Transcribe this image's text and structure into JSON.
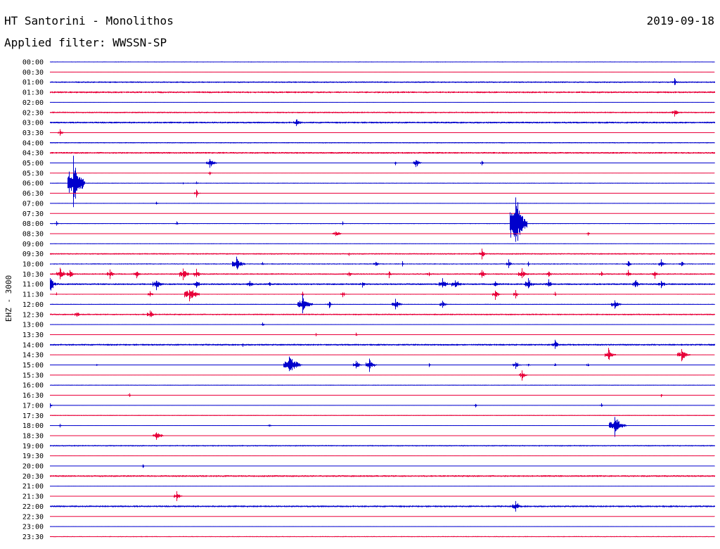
{
  "header": {
    "station": "HT Santorini - Monolithos",
    "filter": "Applied filter: WWSSN-SP",
    "date": "2019-09-18"
  },
  "channel_label": "EHZ - 3000",
  "colors": {
    "odd_trace": "#0000cc",
    "even_trace": "#e8003a"
  },
  "chart_data": {
    "type": "line",
    "title": "HT Santorini - Monolithos",
    "subtitle": "Applied filter: WWSSN-SP",
    "ylabel": "EHZ - 3000",
    "rows": [
      {
        "label": "00:00",
        "noise": 0.6,
        "events": [
          [
            35,
            0.8
          ],
          [
            40,
            0.6
          ],
          [
            92,
            0.8
          ]
        ]
      },
      {
        "label": "00:30",
        "noise": 0.3,
        "events": []
      },
      {
        "label": "01:00",
        "noise": 1.0,
        "events": [
          [
            94,
            6
          ]
        ]
      },
      {
        "label": "01:30",
        "noise": 1.2,
        "events": []
      },
      {
        "label": "02:00",
        "noise": 0.3,
        "events": []
      },
      {
        "label": "02:30",
        "noise": 1.0,
        "events": [
          [
            94,
            7
          ]
        ]
      },
      {
        "label": "03:00",
        "noise": 1.2,
        "events": [
          [
            37,
            8
          ]
        ]
      },
      {
        "label": "03:30",
        "noise": 0.3,
        "events": [
          [
            1.5,
            5
          ]
        ]
      },
      {
        "label": "04:00",
        "noise": 0.8,
        "events": []
      },
      {
        "label": "04:30",
        "noise": 1.2,
        "events": [
          [
            26,
            2
          ]
        ]
      },
      {
        "label": "05:00",
        "noise": 0.5,
        "events": [
          [
            24,
            9
          ],
          [
            52,
            4
          ],
          [
            55,
            8
          ],
          [
            65,
            4
          ]
        ]
      },
      {
        "label": "05:30",
        "noise": 0.3,
        "events": [
          [
            24,
            3
          ]
        ]
      },
      {
        "label": "06:00",
        "noise": 0.5,
        "events": [
          [
            3.5,
            42
          ],
          [
            20,
            2
          ],
          [
            22,
            3
          ]
        ]
      },
      {
        "label": "06:30",
        "noise": 0.3,
        "events": [
          [
            22,
            6
          ]
        ]
      },
      {
        "label": "07:00",
        "noise": 0.5,
        "events": [
          [
            16,
            3
          ]
        ]
      },
      {
        "label": "07:30",
        "noise": 0.3,
        "events": []
      },
      {
        "label": "08:00",
        "noise": 0.6,
        "events": [
          [
            1,
            4
          ],
          [
            19,
            3
          ],
          [
            44,
            3
          ],
          [
            70,
            53
          ]
        ]
      },
      {
        "label": "08:30",
        "noise": 0.3,
        "events": [
          [
            43,
            7
          ],
          [
            81,
            3
          ]
        ]
      },
      {
        "label": "09:00",
        "noise": 0.4,
        "events": []
      },
      {
        "label": "09:30",
        "noise": 1.0,
        "events": [
          [
            45,
            3
          ],
          [
            65,
            8
          ]
        ]
      },
      {
        "label": "10:00",
        "noise": 0.8,
        "events": [
          [
            28,
            12
          ],
          [
            32,
            3
          ],
          [
            49,
            5
          ],
          [
            53,
            4
          ],
          [
            69,
            7
          ],
          [
            72,
            4
          ],
          [
            87,
            6
          ],
          [
            92,
            8
          ],
          [
            95,
            5
          ]
        ]
      },
      {
        "label": "10:30",
        "noise": 1.0,
        "events": [
          [
            1.5,
            10
          ],
          [
            3,
            8
          ],
          [
            9,
            8
          ],
          [
            13,
            7
          ],
          [
            20,
            10
          ],
          [
            22,
            8
          ],
          [
            45,
            6
          ],
          [
            51,
            6
          ],
          [
            57,
            5
          ],
          [
            65,
            7
          ],
          [
            71,
            9
          ],
          [
            75,
            6
          ],
          [
            83,
            5
          ],
          [
            87,
            6
          ],
          [
            91,
            7
          ]
        ]
      },
      {
        "label": "11:00",
        "noise": 1.2,
        "events": [
          [
            0,
            12
          ],
          [
            16,
            10
          ],
          [
            22,
            8
          ],
          [
            30,
            7
          ],
          [
            33,
            5
          ],
          [
            47,
            5
          ],
          [
            59,
            10
          ],
          [
            61,
            10
          ],
          [
            67,
            6
          ],
          [
            72,
            10
          ],
          [
            75,
            7
          ],
          [
            88,
            8
          ],
          [
            92,
            7
          ]
        ]
      },
      {
        "label": "11:30",
        "noise": 0.6,
        "events": [
          [
            1,
            3
          ],
          [
            15,
            5
          ],
          [
            21,
            14
          ],
          [
            38,
            4
          ],
          [
            44,
            5
          ],
          [
            67,
            8
          ],
          [
            70,
            6
          ],
          [
            76,
            4
          ]
        ]
      },
      {
        "label": "12:00",
        "noise": 0.6,
        "events": [
          [
            38,
            14
          ],
          [
            42,
            6
          ],
          [
            52,
            9
          ],
          [
            59,
            7
          ],
          [
            85,
            9
          ]
        ]
      },
      {
        "label": "12:30",
        "noise": 1.0,
        "events": [
          [
            4,
            6
          ],
          [
            15,
            8
          ]
        ]
      },
      {
        "label": "13:00",
        "noise": 0.3,
        "events": [
          [
            32,
            3
          ]
        ]
      },
      {
        "label": "13:30",
        "noise": 0.3,
        "events": [
          [
            40,
            3
          ],
          [
            46,
            3
          ]
        ]
      },
      {
        "label": "14:00",
        "noise": 1.2,
        "events": [
          [
            29,
            3
          ],
          [
            76,
            8
          ]
        ]
      },
      {
        "label": "14:30",
        "noise": 0.3,
        "events": [
          [
            84,
            10
          ],
          [
            95,
            11
          ]
        ]
      },
      {
        "label": "15:00",
        "noise": 0.5,
        "events": [
          [
            7,
            2
          ],
          [
            36,
            18
          ],
          [
            37,
            8
          ],
          [
            46,
            8
          ],
          [
            48,
            10
          ],
          [
            57,
            3
          ],
          [
            70,
            7
          ],
          [
            72,
            3
          ],
          [
            76,
            3
          ],
          [
            81,
            3
          ]
        ]
      },
      {
        "label": "15:30",
        "noise": 0.3,
        "events": [
          [
            71,
            8
          ]
        ]
      },
      {
        "label": "16:00",
        "noise": 0.5,
        "events": []
      },
      {
        "label": "16:30",
        "noise": 0.3,
        "events": [
          [
            12,
            4
          ],
          [
            92,
            3
          ]
        ]
      },
      {
        "label": "17:00",
        "noise": 0.4,
        "events": [
          [
            0,
            4
          ],
          [
            64,
            3
          ],
          [
            83,
            3
          ]
        ]
      },
      {
        "label": "17:30",
        "noise": 0.7,
        "events": []
      },
      {
        "label": "18:00",
        "noise": 0.4,
        "events": [
          [
            1.5,
            3
          ],
          [
            33,
            3
          ],
          [
            85,
            16
          ]
        ]
      },
      {
        "label": "18:30",
        "noise": 0.3,
        "events": [
          [
            16,
            9
          ]
        ]
      },
      {
        "label": "19:00",
        "noise": 0.9,
        "events": []
      },
      {
        "label": "19:30",
        "noise": 0.3,
        "events": []
      },
      {
        "label": "20:00",
        "noise": 0.4,
        "events": [
          [
            14,
            3
          ]
        ]
      },
      {
        "label": "20:30",
        "noise": 1.2,
        "events": [
          [
            25,
            2
          ]
        ]
      },
      {
        "label": "21:00",
        "noise": 0.3,
        "events": []
      },
      {
        "label": "21:30",
        "noise": 0.3,
        "events": [
          [
            19,
            8
          ]
        ]
      },
      {
        "label": "22:00",
        "noise": 1.2,
        "events": [
          [
            70,
            9
          ]
        ]
      },
      {
        "label": "22:30",
        "noise": 0.3,
        "events": []
      },
      {
        "label": "23:00",
        "noise": 0.3,
        "events": []
      },
      {
        "label": "23:30",
        "noise": 0.7,
        "events": []
      }
    ]
  }
}
